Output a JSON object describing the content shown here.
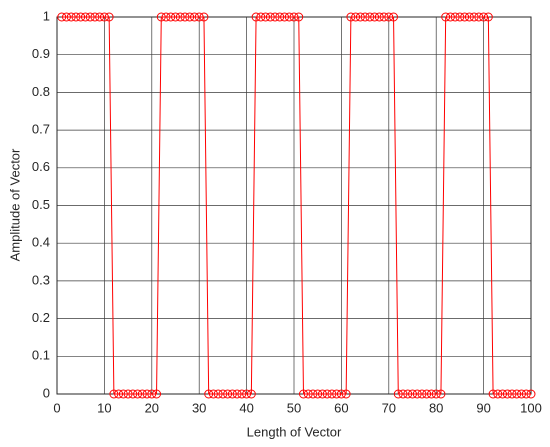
{
  "chart_data": {
    "type": "line",
    "xlabel": "Length of Vector",
    "ylabel": "Amplitude of Vector",
    "x": [
      1,
      2,
      3,
      4,
      5,
      6,
      7,
      8,
      9,
      10,
      11,
      12,
      13,
      14,
      15,
      16,
      17,
      18,
      19,
      20,
      21,
      22,
      23,
      24,
      25,
      26,
      27,
      28,
      29,
      30,
      31,
      32,
      33,
      34,
      35,
      36,
      37,
      38,
      39,
      40,
      41,
      42,
      43,
      44,
      45,
      46,
      47,
      48,
      49,
      50,
      51,
      52,
      53,
      54,
      55,
      56,
      57,
      58,
      59,
      60,
      61,
      62,
      63,
      64,
      65,
      66,
      67,
      68,
      69,
      70,
      71,
      72,
      73,
      74,
      75,
      76,
      77,
      78,
      79,
      80,
      81,
      82,
      83,
      84,
      85,
      86,
      87,
      88,
      89,
      90,
      91,
      92,
      93,
      94,
      95,
      96,
      97,
      98,
      99,
      100
    ],
    "series": [
      {
        "color": "#ff0000",
        "values": [
          1,
          1,
          1,
          1,
          1,
          1,
          1,
          1,
          1,
          1,
          1,
          0,
          0,
          0,
          0,
          0,
          0,
          0,
          0,
          0,
          0,
          1,
          1,
          1,
          1,
          1,
          1,
          1,
          1,
          1,
          1,
          0,
          0,
          0,
          0,
          0,
          0,
          0,
          0,
          0,
          0,
          1,
          1,
          1,
          1,
          1,
          1,
          1,
          1,
          1,
          1,
          0,
          0,
          0,
          0,
          0,
          0,
          0,
          0,
          0,
          0,
          1,
          1,
          1,
          1,
          1,
          1,
          1,
          1,
          1,
          1,
          0,
          0,
          0,
          0,
          0,
          0,
          0,
          0,
          0,
          0,
          1,
          1,
          1,
          1,
          1,
          1,
          1,
          1,
          1,
          1,
          0,
          0,
          0,
          0,
          0,
          0,
          0,
          0,
          0
        ]
      }
    ],
    "xlim": [
      0,
      100
    ],
    "ylim": [
      0,
      1
    ],
    "xticks": [
      0,
      10,
      20,
      30,
      40,
      50,
      60,
      70,
      80,
      90,
      100
    ],
    "yticks": [
      0,
      0.1,
      0.2,
      0.3,
      0.4,
      0.5,
      0.6,
      0.7,
      0.8,
      0.9,
      1
    ],
    "grid": true
  }
}
